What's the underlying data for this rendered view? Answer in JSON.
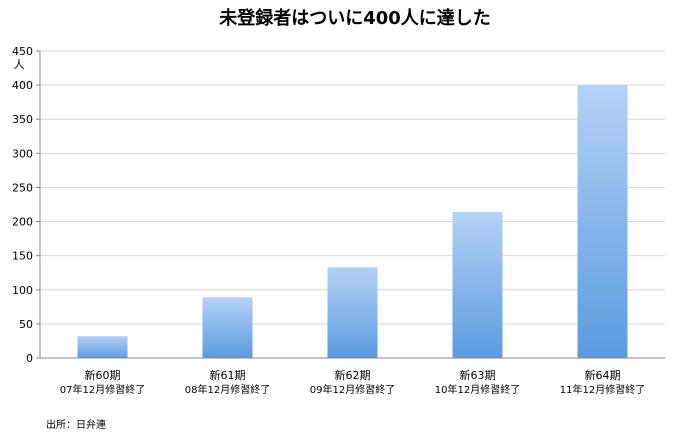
{
  "chart_data": {
    "type": "bar",
    "title": "未登録者はついに400人に達した",
    "ylabel": "人",
    "xlabel": "",
    "ylim": [
      0,
      450
    ],
    "yticks": [
      0,
      50,
      100,
      150,
      200,
      250,
      300,
      350,
      400,
      450
    ],
    "grid": true,
    "categories": [
      "新60期",
      "新61期",
      "新62期",
      "新63期",
      "新64期"
    ],
    "category_sublabels": [
      "07年12月修習終了",
      "08年12月修習終了",
      "09年12月修習終了",
      "10年12月修習終了",
      "11年12月修習終了"
    ],
    "values": [
      32,
      89,
      133,
      214,
      400
    ],
    "bar_color_top": "#b4d2f7",
    "bar_color_bottom": "#5b9bde"
  },
  "source": "出所：日弁連"
}
